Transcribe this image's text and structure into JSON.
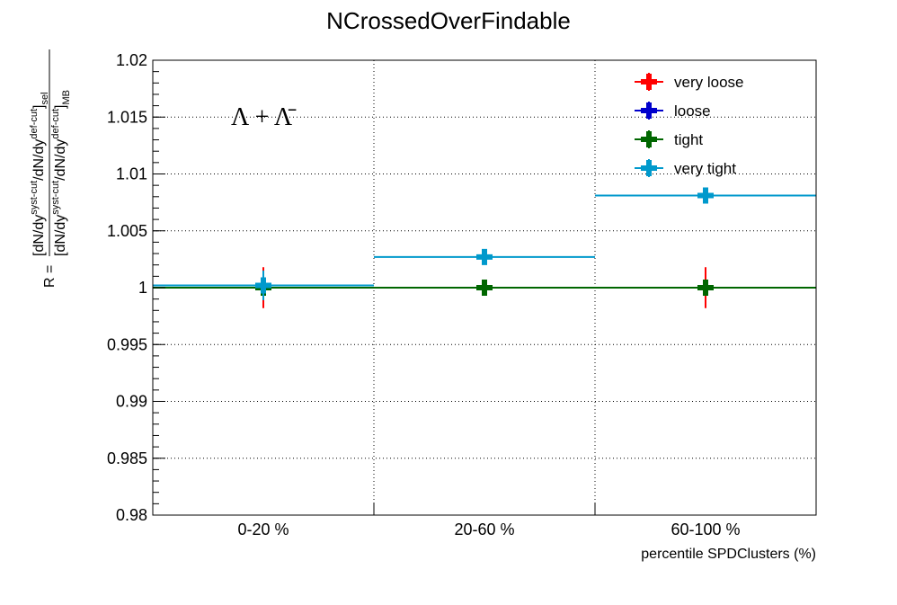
{
  "chart_data": {
    "type": "scatter",
    "title": "NCrossedOverFindable",
    "xlabel": "percentile SPDClusters (%)",
    "ylabel": {
      "prefix": "R =",
      "numerator": "[dN/dy",
      "numerator_sup1": "syst-cut",
      "numerator_mid": "/dN/dy",
      "numerator_sup2": "def-cut",
      "numerator_end": "]",
      "numerator_sub": "sel",
      "denominator": "[dN/dy",
      "denominator_sup1": "syst-cut",
      "denominator_mid": "/dN/dy",
      "denominator_sup2": "def-cut",
      "denominator_end": "]",
      "denominator_sub": "MB"
    },
    "categories": [
      "0-20 %",
      "20-60 %",
      "60-100 %"
    ],
    "ylim": [
      0.98,
      1.02
    ],
    "yticks": [
      0.98,
      0.985,
      0.99,
      0.995,
      1,
      1.005,
      1.01,
      1.015,
      1.02
    ],
    "ytick_labels": [
      "0.98",
      "0.985",
      "0.99",
      "0.995",
      "1",
      "1.005",
      "1.01",
      "1.015",
      "1.02"
    ],
    "grid": true,
    "legend_position": "top-right",
    "annotation": "Λ + Λ̄",
    "series": [
      {
        "name": "very loose",
        "color": "#ff0000",
        "values": [
          1.0,
          1.0,
          1.0
        ],
        "errors": [
          0.0018,
          0.0006,
          0.0018
        ]
      },
      {
        "name": "loose",
        "color": "#0000cc",
        "values": [
          1.0,
          1.0,
          1.0
        ],
        "errors": [
          0.0006,
          0.0006,
          0.0006
        ]
      },
      {
        "name": "tight",
        "color": "#006600",
        "values": [
          1.0,
          1.0,
          1.0
        ],
        "errors": [
          0.0,
          0.0,
          0.0
        ]
      },
      {
        "name": "very tight",
        "color": "#0099cc",
        "values": [
          1.0002,
          1.0027,
          1.0081
        ],
        "errors": [
          0.0013,
          0.0006,
          0.0006
        ]
      }
    ]
  }
}
